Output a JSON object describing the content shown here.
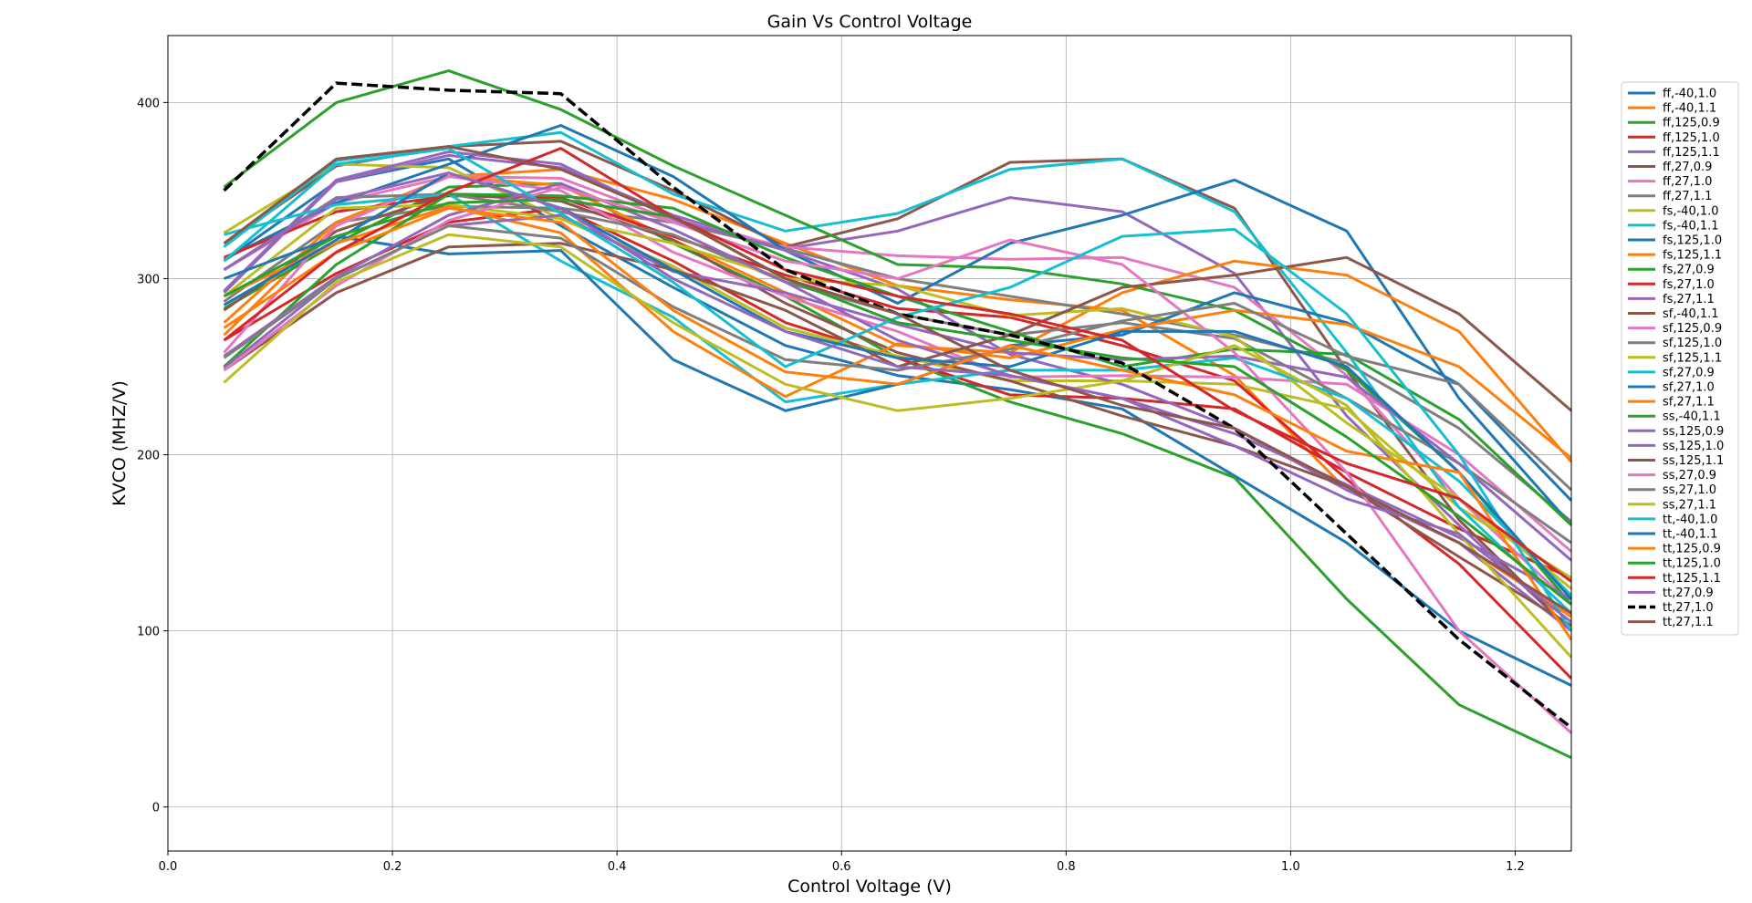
{
  "chart_data": {
    "type": "line",
    "title": "Gain  Vs Control Voltage",
    "xlabel": "Control Voltage (V)",
    "ylabel": "KVCO (MHZ/V)",
    "xlim": [
      0.0,
      1.25
    ],
    "ylim": [
      -25,
      438
    ],
    "xticks": [
      0.0,
      0.2,
      0.4,
      0.6,
      0.8,
      1.0,
      1.2
    ],
    "xtick_labels": [
      "0.0",
      "0.2",
      "0.4",
      "0.6",
      "0.8",
      "1.0",
      "1.2"
    ],
    "yticks": [
      0,
      100,
      200,
      300,
      400
    ],
    "ytick_labels": [
      "0",
      "100",
      "200",
      "300",
      "400"
    ],
    "grid": true,
    "legend_position": "right",
    "x": [
      0.05,
      0.15,
      0.25,
      0.35,
      0.45,
      0.55,
      0.65,
      0.75,
      0.85,
      0.95,
      1.05,
      1.15,
      1.25
    ],
    "series": [
      {
        "name": "ff,-40,1.0",
        "color": "#1f77b4",
        "dashed": false,
        "values": [
          310,
          355,
          368,
          330,
          295,
          262,
          245,
          237,
          226,
          188,
          150,
          100,
          69
        ]
      },
      {
        "name": "ff,-40,1.1",
        "color": "#ff7f0e",
        "dashed": false,
        "values": [
          268,
          330,
          358,
          362,
          345,
          320,
          296,
          288,
          282,
          245,
          180,
          150,
          108
        ]
      },
      {
        "name": "ff,125,0.9",
        "color": "#2ca02c",
        "dashed": false,
        "values": [
          283,
          320,
          352,
          354,
          320,
          290,
          255,
          230,
          212,
          187,
          118,
          58,
          28
        ]
      },
      {
        "name": "ff,125,1.0",
        "color": "#d62728",
        "dashed": false,
        "values": [
          265,
          303,
          332,
          340,
          310,
          275,
          255,
          234,
          232,
          226,
          190,
          158,
          130
        ]
      },
      {
        "name": "ff,125,1.1",
        "color": "#9467bd",
        "dashed": false,
        "values": [
          292,
          355,
          370,
          363,
          336,
          317,
          327,
          346,
          338,
          303,
          222,
          160,
          100
        ]
      },
      {
        "name": "ff,27,0.9",
        "color": "#8c564b",
        "dashed": false,
        "values": [
          320,
          364,
          375,
          378,
          350,
          318,
          334,
          366,
          368,
          340,
          248,
          163,
          100
        ]
      },
      {
        "name": "ff,27,1.0",
        "color": "#e377c2",
        "dashed": false,
        "values": [
          305,
          343,
          358,
          357,
          333,
          318,
          313,
          311,
          312,
          295,
          245,
          175,
          115
        ]
      },
      {
        "name": "ff,27,1.1",
        "color": "#7f7f7f",
        "dashed": false,
        "values": [
          287,
          332,
          341,
          340,
          332,
          317,
          300,
          290,
          280,
          268,
          252,
          215,
          162
        ]
      },
      {
        "name": "fs,-40,1.0",
        "color": "#bcbd22",
        "dashed": false,
        "values": [
          326,
          365,
          363,
          334,
          307,
          272,
          256,
          242,
          242,
          240,
          226,
          170,
          130
        ]
      },
      {
        "name": "fs,-40,1.1",
        "color": "#17becf",
        "dashed": false,
        "values": [
          318,
          367,
          375,
          383,
          348,
          327,
          337,
          362,
          368,
          338,
          258,
          170,
          110
        ]
      },
      {
        "name": "fs,125,1.0",
        "color": "#1f77b4",
        "dashed": false,
        "values": [
          311,
          343,
          365,
          387,
          358,
          316,
          286,
          320,
          336,
          356,
          327,
          232,
          160
        ]
      },
      {
        "name": "fs,125,1.1",
        "color": "#ff7f0e",
        "dashed": false,
        "values": [
          275,
          332,
          358,
          353,
          322,
          292,
          262,
          258,
          292,
          310,
          302,
          270,
          196
        ]
      },
      {
        "name": "fs,27,0.9",
        "color": "#2ca02c",
        "dashed": false,
        "values": [
          352,
          400,
          418,
          396,
          364,
          336,
          308,
          306,
          297,
          282,
          248,
          190,
          115
        ]
      },
      {
        "name": "fs,27,1.0",
        "color": "#d62728",
        "dashed": false,
        "values": [
          312,
          338,
          347,
          346,
          324,
          302,
          283,
          278,
          262,
          242,
          186,
          138,
          73
        ]
      },
      {
        "name": "fs,27,1.1",
        "color": "#9467bd",
        "dashed": false,
        "values": [
          293,
          356,
          372,
          365,
          334,
          316,
          294,
          257,
          240,
          215,
          180,
          150,
          100
        ]
      },
      {
        "name": "sf,-40,1.1",
        "color": "#8c564b",
        "dashed": false,
        "values": [
          282,
          327,
          348,
          344,
          322,
          286,
          258,
          242,
          222,
          205,
          182,
          142,
          103
        ]
      },
      {
        "name": "sf,125,0.9",
        "color": "#e377c2",
        "dashed": false,
        "values": [
          258,
          330,
          358,
          350,
          315,
          290,
          270,
          244,
          245,
          244,
          240,
          200,
          145
        ]
      },
      {
        "name": "sf,125,1.0",
        "color": "#7f7f7f",
        "dashed": false,
        "values": [
          305,
          346,
          348,
          338,
          325,
          298,
          280,
          268,
          275,
          266,
          232,
          195,
          150
        ]
      },
      {
        "name": "sf,125,1.1",
        "color": "#bcbd22",
        "dashed": false,
        "values": [
          290,
          340,
          342,
          334,
          320,
          300,
          296,
          279,
          283,
          267,
          218,
          175,
          124
        ]
      },
      {
        "name": "sf,27,0.9",
        "color": "#17becf",
        "dashed": false,
        "values": [
          325,
          342,
          348,
          310,
          278,
          230,
          240,
          248,
          248,
          255,
          232,
          185,
          120
        ]
      },
      {
        "name": "sf,27,1.0",
        "color": "#1f77b4",
        "dashed": false,
        "values": [
          300,
          324,
          314,
          316,
          254,
          225,
          240,
          262,
          268,
          292,
          275,
          240,
          174
        ]
      },
      {
        "name": "sf,27,1.1",
        "color": "#ff7f0e",
        "dashed": false,
        "values": [
          290,
          320,
          341,
          326,
          270,
          233,
          263,
          255,
          271,
          282,
          274,
          250,
          198
        ]
      },
      {
        "name": "ss,-40,1.1",
        "color": "#2ca02c",
        "dashed": false,
        "values": [
          250,
          308,
          348,
          347,
          340,
          312,
          290,
          270,
          250,
          260,
          257,
          220,
          160
        ]
      },
      {
        "name": "ss,125,0.9",
        "color": "#9467bd",
        "dashed": false,
        "values": [
          249,
          300,
          330,
          336,
          304,
          292,
          274,
          258,
          254,
          256,
          244,
          195,
          140
        ]
      },
      {
        "name": "ss,125,1.0",
        "color": "#9467bd",
        "dashed": false,
        "values": [
          256,
          301,
          336,
          354,
          328,
          298,
          265,
          245,
          232,
          212,
          183,
          153,
          118
        ]
      },
      {
        "name": "ss,125,1.1",
        "color": "#8c564b",
        "dashed": false,
        "values": [
          248,
          292,
          318,
          320,
          305,
          282,
          250,
          268,
          295,
          302,
          312,
          280,
          225
        ]
      },
      {
        "name": "ss,27,0.9",
        "color": "#e377c2",
        "dashed": false,
        "values": [
          248,
          296,
          333,
          352,
          332,
          310,
          300,
          322,
          308,
          258,
          190,
          100,
          42
        ]
      },
      {
        "name": "ss,27,1.0",
        "color": "#7f7f7f",
        "dashed": false,
        "values": [
          255,
          300,
          330,
          323,
          284,
          254,
          248,
          260,
          276,
          286,
          256,
          240,
          180
        ]
      },
      {
        "name": "ss,27,1.1",
        "color": "#bcbd22",
        "dashed": false,
        "values": [
          241,
          298,
          325,
          318,
          275,
          240,
          225,
          232,
          242,
          262,
          228,
          155,
          85
        ]
      },
      {
        "name": "tt,-40,1.0",
        "color": "#17becf",
        "dashed": false,
        "values": [
          310,
          365,
          374,
          337,
          298,
          250,
          278,
          295,
          324,
          328,
          280,
          200,
          100
        ]
      },
      {
        "name": "tt,-40,1.1",
        "color": "#1f77b4",
        "dashed": false,
        "values": [
          285,
          322,
          360,
          340,
          305,
          270,
          255,
          250,
          270,
          270,
          250,
          190,
          118
        ]
      },
      {
        "name": "tt,125,0.9",
        "color": "#ff7f0e",
        "dashed": false,
        "values": [
          272,
          315,
          340,
          332,
          282,
          247,
          240,
          262,
          248,
          234,
          202,
          190,
          95
        ]
      },
      {
        "name": "tt,125,1.0",
        "color": "#2ca02c",
        "dashed": false,
        "values": [
          290,
          324,
          343,
          345,
          335,
          300,
          275,
          265,
          255,
          250,
          210,
          165,
          115
        ]
      },
      {
        "name": "tt,125,1.1",
        "color": "#d62728",
        "dashed": false,
        "values": [
          265,
          315,
          349,
          374,
          335,
          305,
          290,
          280,
          265,
          225,
          195,
          175,
          128
        ]
      },
      {
        "name": "tt,27,0.9",
        "color": "#9467bd",
        "dashed": false,
        "values": [
          305,
          345,
          360,
          340,
          300,
          270,
          250,
          245,
          232,
          205,
          175,
          155,
          105
        ]
      },
      {
        "name": "tt,27,1.0",
        "color": "#000000",
        "dashed": true,
        "values": [
          350,
          411,
          407,
          405,
          352,
          305,
          280,
          268,
          252,
          215,
          155,
          95,
          45
        ]
      },
      {
        "name": "tt,27,1.1",
        "color": "#8c564b",
        "dashed": false,
        "values": [
          320,
          368,
          375,
          362,
          335,
          300,
          280,
          248,
          228,
          215,
          182,
          150,
          110
        ]
      }
    ]
  }
}
